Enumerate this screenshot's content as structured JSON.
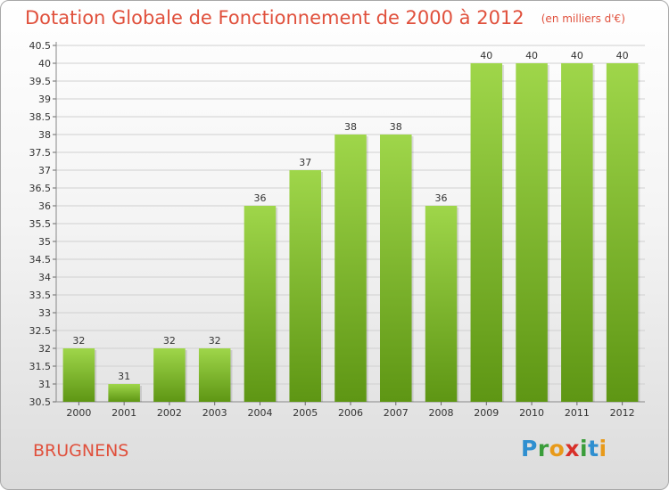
{
  "title": "Dotation Globale de Fonctionnement de 2000 à 2012",
  "unit": "(en milliers d'€)",
  "commune": "BRUGNENS",
  "logo": {
    "letters": [
      "P",
      "r",
      "o",
      "x",
      "i",
      "t",
      "i"
    ],
    "colors": [
      "#2f8fd0",
      "#3a9d3a",
      "#e89a1a",
      "#d8302a",
      "#3a9d3a",
      "#2f8fd0",
      "#e89a1a"
    ]
  },
  "colors": {
    "title": "#e0503c",
    "bar_top": "#9fd64a",
    "bar_bottom": "#5e9614",
    "grid": "#d0d0d0"
  },
  "chart_data": {
    "type": "bar",
    "categories": [
      "2000",
      "2001",
      "2002",
      "2003",
      "2004",
      "2005",
      "2006",
      "2007",
      "2008",
      "2009",
      "2010",
      "2011",
      "2012"
    ],
    "values": [
      32,
      31,
      32,
      32,
      36,
      37,
      38,
      38,
      36,
      40,
      40,
      40,
      40
    ],
    "ylim": [
      30.5,
      40.5
    ],
    "yticks": [
      "30.5",
      "31",
      "31.5",
      "32",
      "32.5",
      "33",
      "33.5",
      "34",
      "34.5",
      "35",
      "35.5",
      "36",
      "36.5",
      "37",
      "37.5",
      "38",
      "38.5",
      "39",
      "39.5",
      "40",
      "40.5"
    ],
    "grid": true,
    "legend": "none"
  }
}
